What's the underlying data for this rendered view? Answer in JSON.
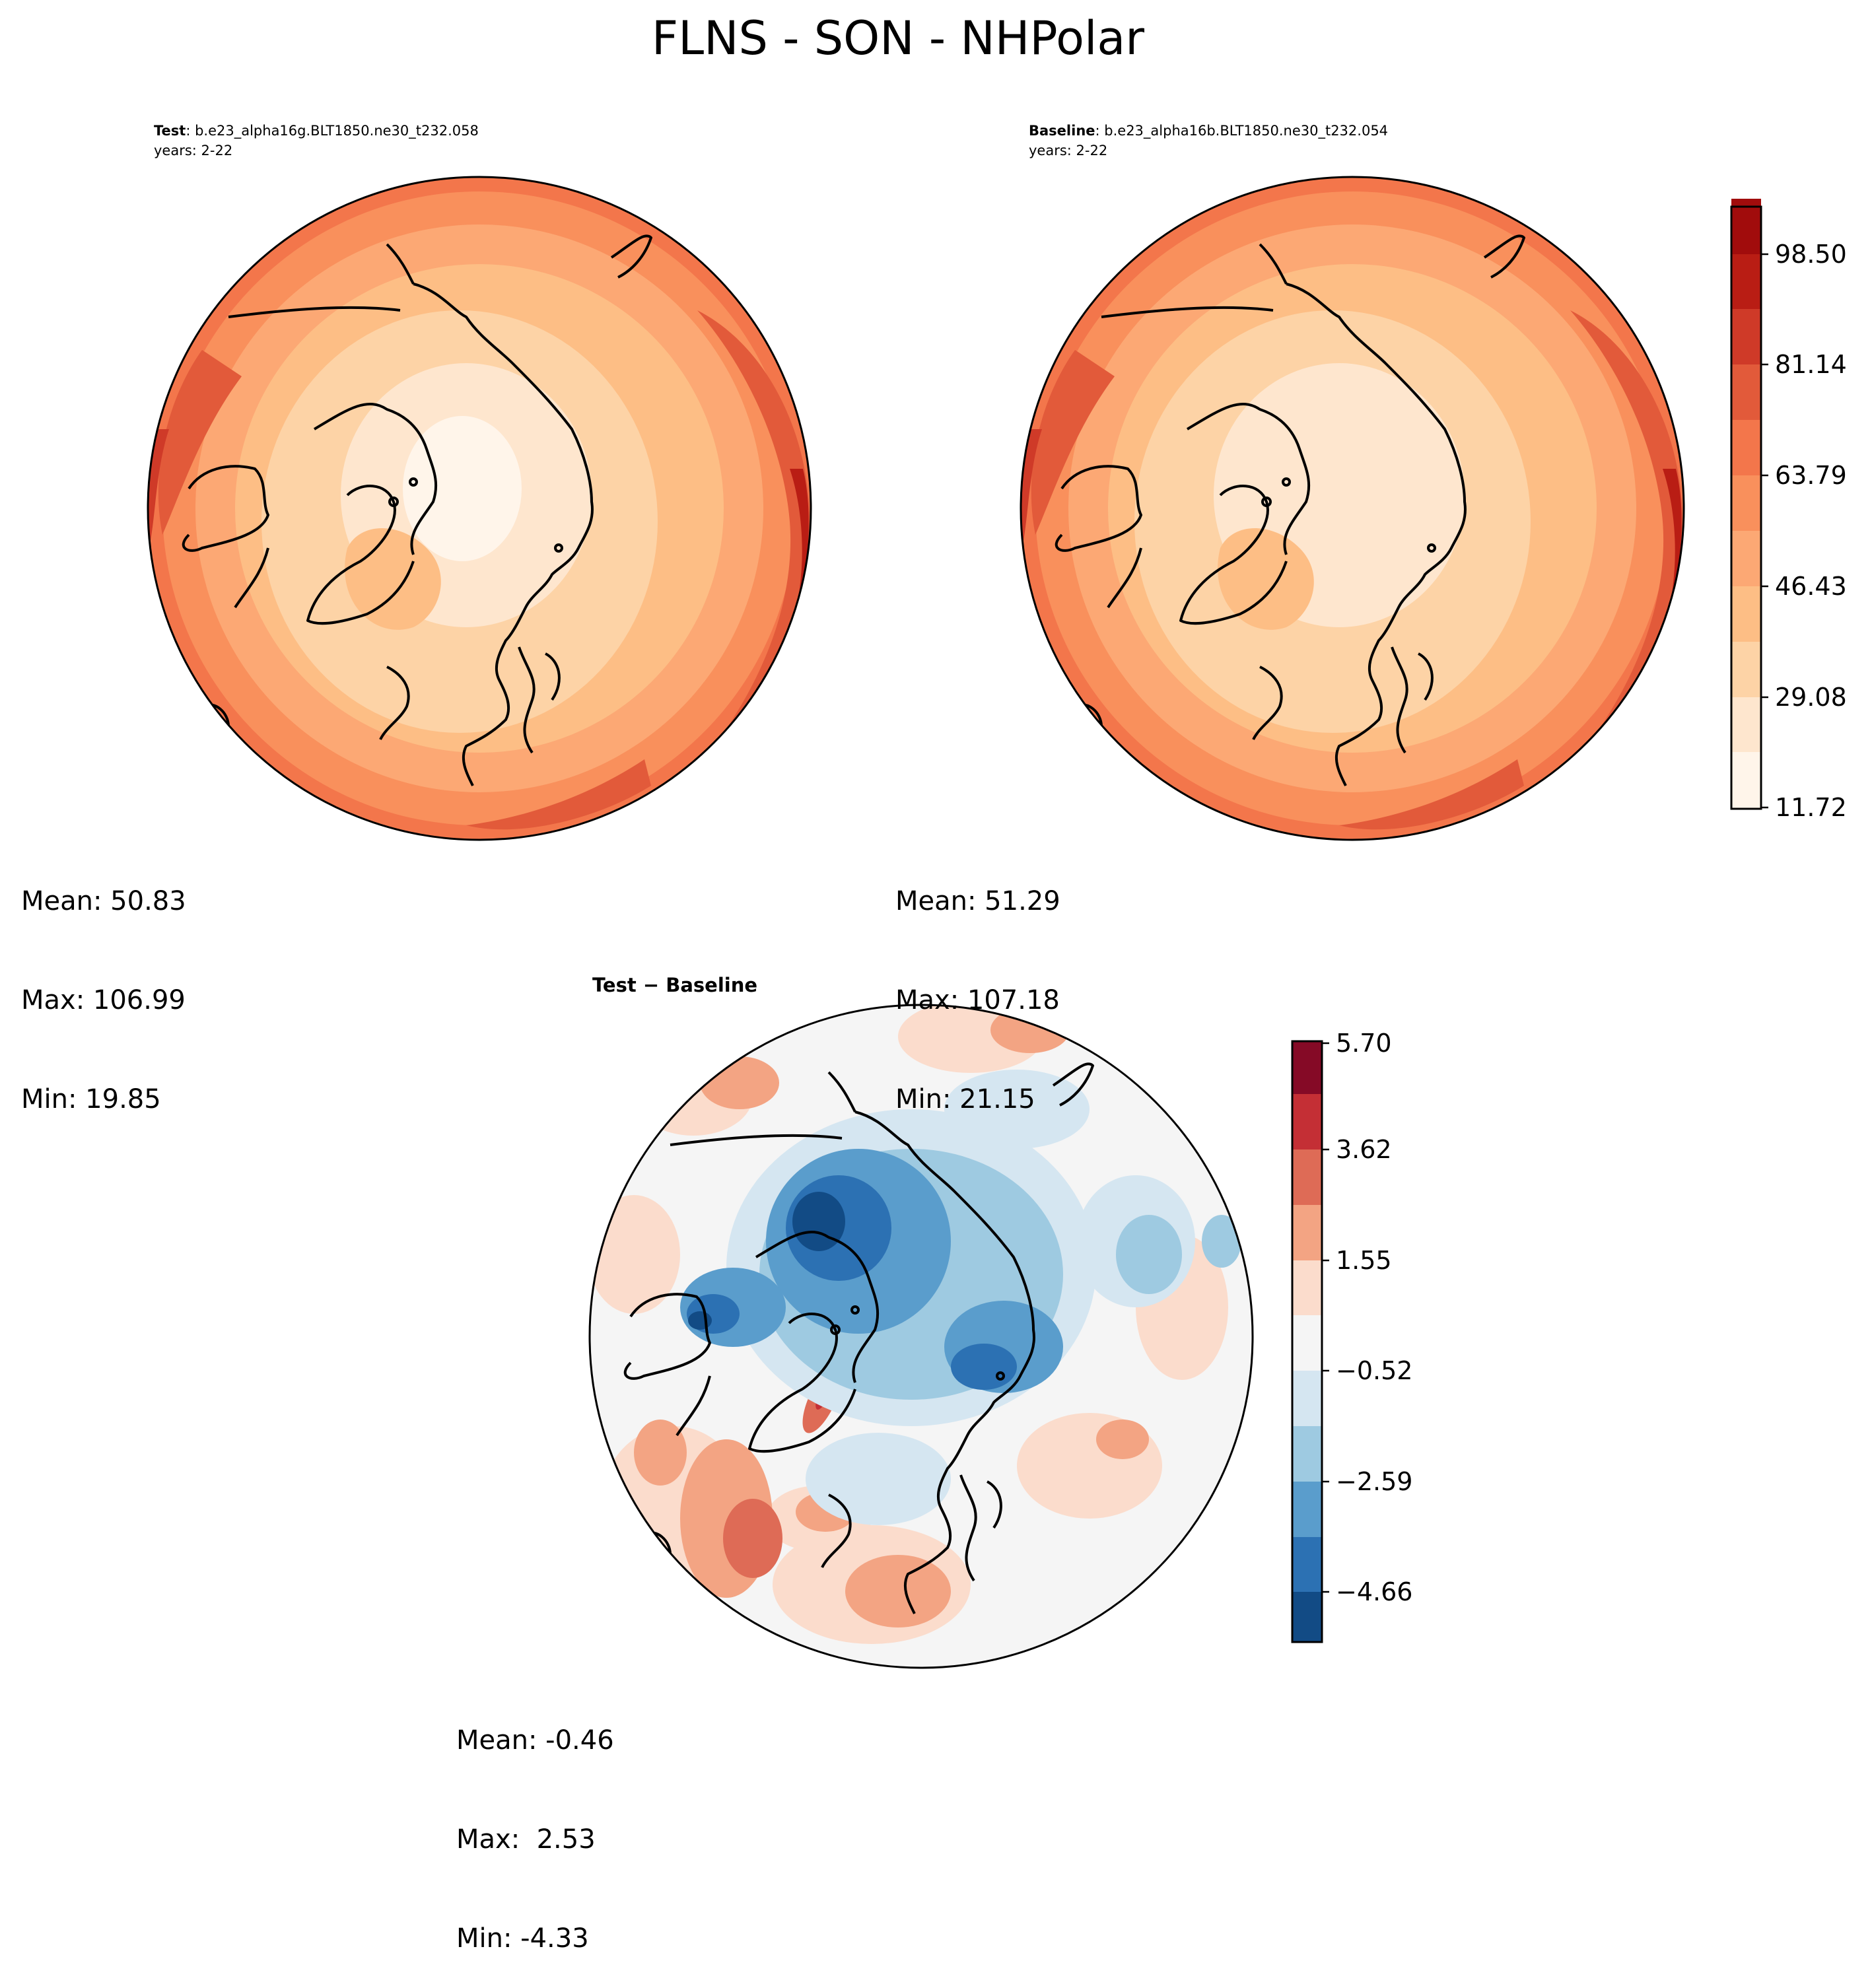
{
  "title": "FLNS - SON - NHPolar",
  "panels": {
    "test": {
      "label": "Test",
      "case": ": b.e23_alpha16g.BLT1850.ne30_t232.058",
      "years": "years: 2-22",
      "stats": {
        "mean": "Mean: 50.83",
        "max": "Max: 106.99",
        "min": "Min: 19.85"
      }
    },
    "baseline": {
      "label": "Baseline",
      "case": ": b.e23_alpha16b.BLT1850.ne30_t232.054",
      "years": "years: 2-22",
      "stats": {
        "mean": "Mean: 51.29",
        "max": "Max: 107.18",
        "min": "Min: 21.15"
      }
    },
    "diff": {
      "label": "Test − Baseline",
      "stats": {
        "mean": "Mean: -0.46",
        "max": "Max:  2.53",
        "min": "Min: -4.33"
      }
    }
  },
  "chart_data": [
    {
      "type": "heatmap",
      "projection": "north-polar-stereographic",
      "variable": "FLNS",
      "season": "SON",
      "region": "NHPolar",
      "name": "Test",
      "colormap": "OrRd",
      "levels": [
        11.72,
        20.4,
        29.08,
        37.75,
        46.43,
        55.11,
        63.79,
        72.47,
        81.14,
        89.82,
        98.5,
        107.18
      ],
      "colors": [
        "#fff5ea",
        "#fee6ce",
        "#fdd3a6",
        "#fdbe85",
        "#fca874",
        "#f9905c",
        "#f3764b",
        "#e25a3a",
        "#cf3a28",
        "#b91d14",
        "#a10c0c",
        "#7f0000"
      ],
      "colorbar_ticks": [
        "11.72",
        "29.08",
        "46.43",
        "63.79",
        "81.14",
        "98.50"
      ],
      "values": {
        "mean": 50.83,
        "max": 106.99,
        "min": 19.85
      }
    },
    {
      "type": "heatmap",
      "projection": "north-polar-stereographic",
      "name": "Baseline",
      "colormap": "OrRd",
      "levels": [
        11.72,
        20.4,
        29.08,
        37.75,
        46.43,
        55.11,
        63.79,
        72.47,
        81.14,
        89.82,
        98.5,
        107.18
      ],
      "values": {
        "mean": 51.29,
        "max": 107.18,
        "min": 21.15
      }
    },
    {
      "type": "heatmap",
      "projection": "north-polar-stereographic",
      "name": "Test - Baseline",
      "colormap": "RdBu_r",
      "levels": [
        -5.7,
        -4.66,
        -3.62,
        -2.59,
        -1.55,
        -0.52,
        0.52,
        1.55,
        2.59,
        3.62,
        4.66,
        5.7
      ],
      "colors": [
        "#124b85",
        "#2c71b3",
        "#5a9dcc",
        "#9ecae1",
        "#d5e6f1",
        "#f5f5f5",
        "#fbdccc",
        "#f3a483",
        "#de6b56",
        "#c42f35",
        "#850a26"
      ],
      "colorbar_ticks": [
        "5.70",
        "3.62",
        "1.55",
        "−0.52",
        "−2.59",
        "−4.66"
      ],
      "values": {
        "mean": -0.46,
        "max": 2.53,
        "min": -4.33
      }
    }
  ]
}
